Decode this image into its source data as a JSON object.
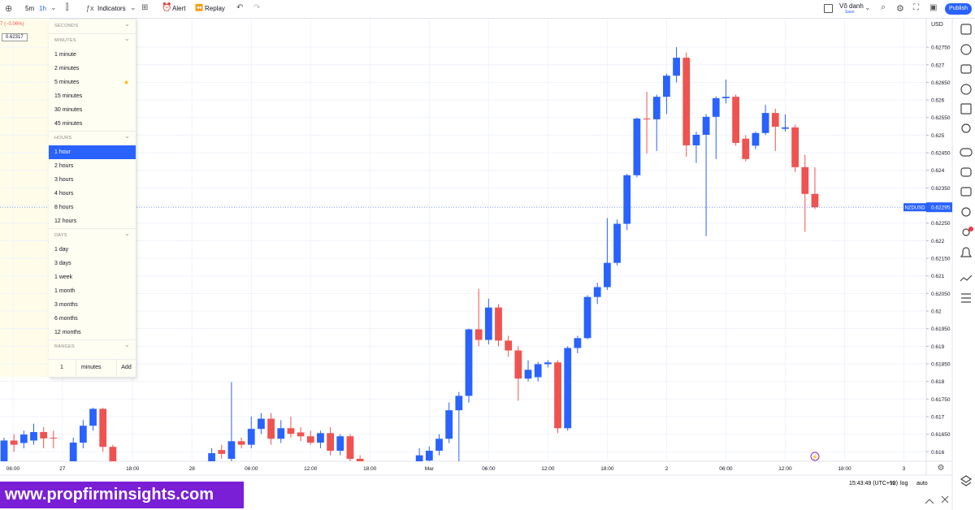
{
  "toolbar": {
    "interval": "5m",
    "selected_interval": "1h",
    "indicators": "Indicators",
    "alert": "Alert",
    "replay": "Replay",
    "user": "Võ danh",
    "save": "Save",
    "publish": "Publish"
  },
  "legend": {
    "change": "7 (−0.06%)",
    "price": "0.62317"
  },
  "interval_menu": {
    "sections": [
      {
        "title": "SECONDS"
      },
      {
        "title": "MINUTES",
        "items": [
          "1 minute",
          "2 minutes",
          "5 minutes",
          "15 minutes",
          "30 minutes",
          "45 minutes"
        ]
      },
      {
        "title": "HOURS",
        "items": [
          "1 hour",
          "2 hours",
          "3 hours",
          "4 hours",
          "8 hours",
          "12 hours"
        ]
      },
      {
        "title": "DAYS",
        "items": [
          "1 day",
          "3 days",
          "1 week",
          "1 month",
          "3 months",
          "6 months",
          "12 months"
        ]
      },
      {
        "title": "RANGES"
      }
    ],
    "selected": {
      "section": 2,
      "item": 0
    },
    "favorite": {
      "section": 1,
      "item": 2
    },
    "custom": {
      "value": "1",
      "unit": "minutes",
      "button": "Add"
    }
  },
  "chart_data": {
    "type": "candlestick",
    "symbol": "NZDUSD",
    "currency": "USD",
    "last_price": 0.62295,
    "up_color": "#2962ff",
    "down_color": "#ef5350",
    "grid": true,
    "x": [
      0,
      1,
      2,
      3,
      4,
      5,
      7,
      8,
      9,
      10,
      11,
      21,
      22,
      23,
      24,
      25,
      26,
      27,
      28,
      29,
      30,
      31,
      32,
      33,
      34,
      35,
      36,
      42,
      43,
      44,
      45,
      46,
      47,
      48,
      49,
      50,
      51,
      52,
      53,
      54,
      55,
      56,
      57,
      58,
      59,
      60,
      61,
      62,
      63,
      64,
      65,
      66,
      67,
      68,
      69,
      70,
      71,
      72,
      73,
      74,
      75,
      76,
      77,
      78,
      79,
      80,
      81,
      82
    ],
    "open": [
      0.6156,
      0.61632,
      0.61625,
      0.61632,
      0.61656,
      0.6164,
      0.6156,
      0.61626,
      0.61674,
      0.61722,
      0.61614,
      0.6156,
      0.61605,
      0.6158,
      0.6163,
      0.6162,
      0.61665,
      0.61694,
      0.61637,
      0.61667,
      0.61655,
      0.61644,
      0.61626,
      0.61653,
      0.61603,
      0.61644,
      0.6158,
      0.6156,
      0.61575,
      0.61603,
      0.61637,
      0.61718,
      0.61759,
      0.61948,
      0.61918,
      0.6201,
      0.61916,
      0.61888,
      0.61808,
      0.61812,
      0.61849,
      0.61854,
      0.61667,
      0.61895,
      0.61923,
      0.6204,
      0.62068,
      0.62137,
      0.62248,
      0.62386,
      0.62547,
      0.62545,
      0.62609,
      0.62669,
      0.6272,
      0.62471,
      0.62501,
      0.62552,
      0.62605,
      0.62609,
      0.6249,
      0.6247,
      0.62506,
      0.62563,
      0.62518,
      0.62522,
      0.62409,
      0.62333
    ],
    "high": [
      0.6164,
      0.6165,
      0.6166,
      0.6168,
      0.6167,
      0.6166,
      0.6164,
      0.6169,
      0.61725,
      0.61725,
      0.6162,
      0.6161,
      0.6162,
      0.61798,
      0.6164,
      0.617,
      0.6171,
      0.6171,
      0.6169,
      0.617,
      0.6167,
      0.6166,
      0.6166,
      0.6167,
      0.6165,
      0.6165,
      0.6159,
      0.6161,
      0.61615,
      0.6165,
      0.6174,
      0.6177,
      0.6195,
      0.62063,
      0.62035,
      0.6202,
      0.6193,
      0.619,
      0.6186,
      0.61855,
      0.6186,
      0.6186,
      0.619,
      0.6193,
      0.62045,
      0.6208,
      0.62264,
      0.6226,
      0.6239,
      0.6255,
      0.62623,
      0.62615,
      0.62675,
      0.6275,
      0.62735,
      0.6251,
      0.6256,
      0.6261,
      0.62658,
      0.62615,
      0.625,
      0.6251,
      0.62586,
      0.62575,
      0.62559,
      0.6253,
      0.62444,
      0.62409
    ],
    "low": [
      0.6154,
      0.616,
      0.6161,
      0.6162,
      0.6161,
      0.6161,
      0.6154,
      0.6161,
      0.6166,
      0.616,
      0.6154,
      0.6154,
      0.6158,
      0.6156,
      0.6161,
      0.6161,
      0.6165,
      0.6162,
      0.61625,
      0.6164,
      0.6163,
      0.6162,
      0.6161,
      0.6159,
      0.6159,
      0.6156,
      0.6154,
      0.6154,
      0.6156,
      0.6159,
      0.61625,
      0.6156,
      0.6174,
      0.619,
      0.61905,
      0.619,
      0.6187,
      0.61745,
      0.618,
      0.618,
      0.6184,
      0.61653,
      0.6166,
      0.6188,
      0.6192,
      0.6202,
      0.6206,
      0.6213,
      0.6223,
      0.6238,
      0.62448,
      0.62455,
      0.6256,
      0.6265,
      0.62439,
      0.62421,
      0.62213,
      0.62432,
      0.6259,
      0.6247,
      0.62425,
      0.6246,
      0.625,
      0.62455,
      0.6251,
      0.62395,
      0.62225,
      0.6229
    ],
    "close": [
      0.61632,
      0.6162,
      0.61649,
      0.61656,
      0.61638,
      0.61638,
      0.61626,
      0.61674,
      0.61722,
      0.61614,
      0.6156,
      0.61596,
      0.61594,
      0.6163,
      0.6162,
      0.61665,
      0.61694,
      0.61637,
      0.61667,
      0.61651,
      0.61644,
      0.61626,
      0.61653,
      0.61603,
      0.61644,
      0.6158,
      0.6156,
      0.6159,
      0.61603,
      0.61637,
      0.61718,
      0.61759,
      0.61948,
      0.61918,
      0.6201,
      0.61916,
      0.61888,
      0.61808,
      0.61833,
      0.61849,
      0.61854,
      0.61667,
      0.61895,
      0.61923,
      0.6204,
      0.62068,
      0.62137,
      0.62248,
      0.62386,
      0.62547,
      0.62545,
      0.62609,
      0.62669,
      0.6272,
      0.62471,
      0.62501,
      0.62552,
      0.62605,
      0.62609,
      0.62478,
      0.62432,
      0.62506,
      0.62563,
      0.62524,
      0.62522,
      0.62409,
      0.62333,
      0.62295
    ],
    "xlim": [
      -0.41,
      93.26
    ],
    "ylim": [
      0.61573,
      0.62831
    ],
    "xticks": [
      {
        "value": 0.9,
        "label": "06:00"
      },
      {
        "value": 5.9,
        "label": "27"
      },
      {
        "value": 13,
        "label": "18:00"
      },
      {
        "value": 19,
        "label": "28"
      },
      {
        "value": 25,
        "label": "06:00"
      },
      {
        "value": 31,
        "label": "12:00"
      },
      {
        "value": 37,
        "label": "18:00"
      },
      {
        "value": 43,
        "label": "Mar"
      },
      {
        "value": 49,
        "label": "06:00"
      },
      {
        "value": 55,
        "label": "12:00"
      },
      {
        "value": 61,
        "label": "18:00"
      },
      {
        "value": 67,
        "label": "2"
      },
      {
        "value": 73,
        "label": "06:00"
      },
      {
        "value": 79,
        "label": "12:00"
      },
      {
        "value": 85,
        "label": "18:00"
      },
      {
        "value": 91,
        "label": "3"
      }
    ],
    "yticks": [
      {
        "value": 0.6275,
        "label": "0.62750"
      },
      0.627,
      {
        "value": 0.6265,
        "label": "0.62650"
      },
      0.626,
      {
        "value": 0.6255,
        "label": "0.62550"
      },
      0.625,
      {
        "value": 0.6245,
        "label": "0.62450"
      },
      0.624,
      {
        "value": 0.6235,
        "label": "0.62350"
      },
      0.623,
      {
        "value": 0.6225,
        "label": "0.62250"
      },
      0.622,
      {
        "value": 0.6215,
        "label": "0.62150"
      },
      0.621,
      {
        "value": 0.6205,
        "label": "0.62050"
      },
      0.62,
      {
        "value": 0.6195,
        "label": "0.61950"
      },
      0.619,
      {
        "value": 0.6185,
        "label": "0.61850"
      },
      0.618,
      {
        "value": 0.6175,
        "label": "0.61750"
      },
      0.617,
      {
        "value": 0.6165,
        "label": "0.61650"
      },
      0.616
    ]
  },
  "status_bar": {
    "time": "15:43:49 (UTC+13)",
    "percent": "%",
    "log": "log",
    "auto": "auto"
  },
  "watermark": "www.propfirminsights.com"
}
